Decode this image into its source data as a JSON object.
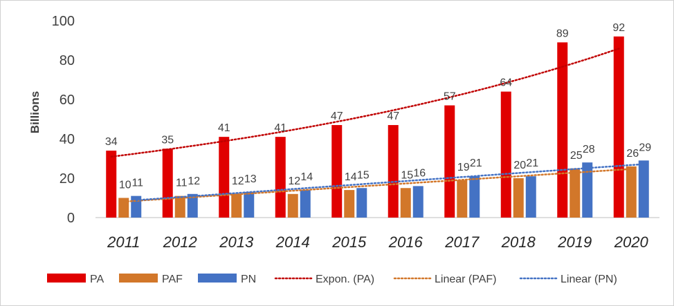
{
  "chart_data": {
    "type": "bar",
    "ylabel": "Billions",
    "ylim": [
      0,
      100
    ],
    "yticks": [
      "0",
      "20",
      "40",
      "60",
      "80",
      "100"
    ],
    "categories": [
      "2011",
      "2012",
      "2013",
      "2014",
      "2015",
      "2016",
      "2017",
      "2018",
      "2019",
      "2020"
    ],
    "series": [
      {
        "name": "PA",
        "color": "#e00000",
        "values": [
          34,
          35,
          41,
          41,
          47,
          47,
          57,
          64,
          89,
          92
        ]
      },
      {
        "name": "PAF",
        "color": "#d2772a",
        "values": [
          10,
          11,
          12,
          12,
          14,
          15,
          19,
          20,
          25,
          26
        ]
      },
      {
        "name": "PN",
        "color": "#4472c4",
        "values": [
          11,
          12,
          13,
          14,
          15,
          16,
          21,
          21,
          28,
          29
        ]
      }
    ],
    "trendlines": [
      {
        "name": "Expon. (PA)",
        "color": "#c00000",
        "type": "exponential",
        "of": "PA"
      },
      {
        "name": "Linear (PAF)",
        "color": "#d2772a",
        "type": "linear",
        "of": "PAF"
      },
      {
        "name": "Linear (PN)",
        "color": "#4472c4",
        "type": "linear",
        "of": "PN"
      }
    ],
    "grid": false,
    "legend": "bottom"
  }
}
